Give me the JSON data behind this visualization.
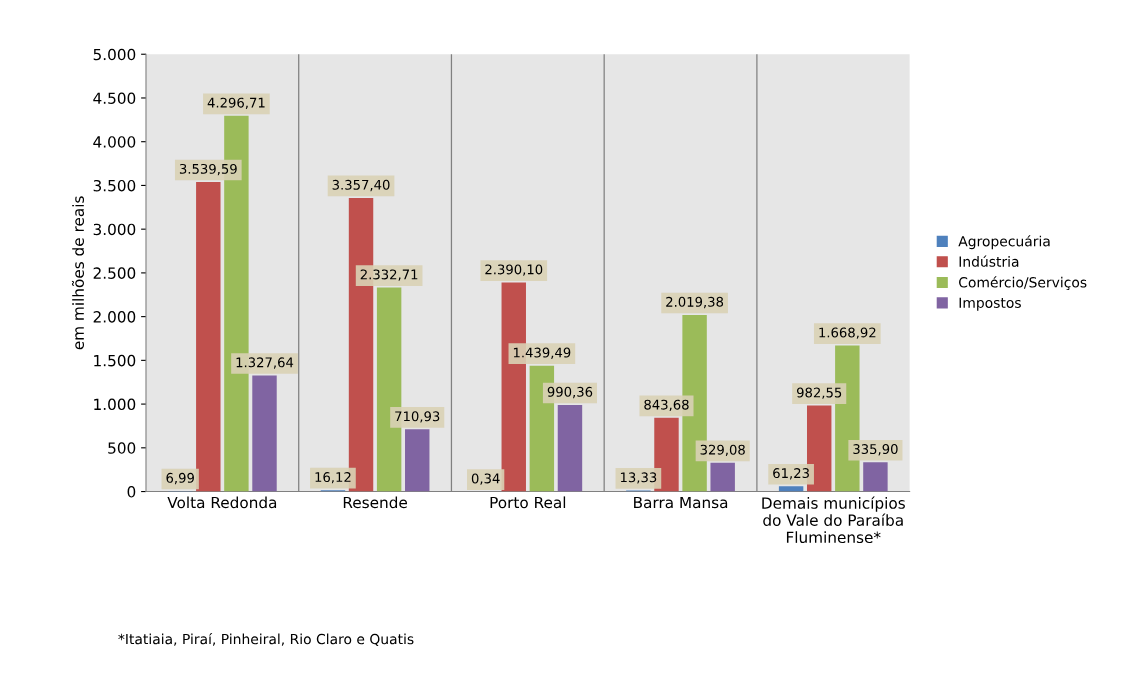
{
  "chart_data": {
    "type": "bar",
    "ylabel": "em milhões de reais",
    "categories": [
      "Volta Redonda",
      "Resende",
      "Porto Real",
      "Barra Mansa",
      "Demais municípios\ndo Vale do Paraíba\nFluminense*"
    ],
    "series": [
      {
        "name": "Agropecuária",
        "color": "#4f81bd",
        "values": [
          6.99,
          16.12,
          0.34,
          13.33,
          61.23
        ],
        "value_labels": [
          "6,99",
          "16,12",
          "0,34",
          "13,33",
          "61,23"
        ]
      },
      {
        "name": "Indústria",
        "color": "#c0504d",
        "values": [
          3539.59,
          3357.4,
          2390.1,
          843.68,
          982.55
        ],
        "value_labels": [
          "3.539,59",
          "3.357,40",
          "2.390,10",
          "843,68",
          "982,55"
        ]
      },
      {
        "name": "Comércio/Serviços",
        "color": "#9bbb59",
        "values": [
          4296.71,
          2332.71,
          1439.49,
          2019.38,
          1668.92
        ],
        "value_labels": [
          "4.296,71",
          "2.332,71",
          "1.439,49",
          "2.019,38",
          "1.668,92"
        ]
      },
      {
        "name": "Impostos",
        "color": "#8064a2",
        "values": [
          1327.64,
          710.93,
          990.36,
          329.08,
          335.9
        ],
        "value_labels": [
          "1.327,64",
          "710,93",
          "990,36",
          "329,08",
          "335,90"
        ]
      }
    ],
    "ylim": [
      0,
      5000
    ],
    "yticks": [
      0,
      500,
      {
        "value": 1000,
        "label": "1.000"
      },
      {
        "value": 1500,
        "label": "1.500"
      },
      {
        "value": 2000,
        "label": "2.000"
      },
      {
        "value": 2500,
        "label": "2.500"
      },
      {
        "value": 3000,
        "label": "3.000"
      },
      {
        "value": 3500,
        "label": "3.500"
      },
      {
        "value": 4000,
        "label": "4.000"
      },
      {
        "value": 4500,
        "label": "4.500"
      },
      {
        "value": 5000,
        "label": "5.000"
      }
    ],
    "grid": "x",
    "legend": "right",
    "annotations": [
      "*Itatiaia, Piraí, Pinheiral, Rio Claro e Quatis"
    ]
  }
}
